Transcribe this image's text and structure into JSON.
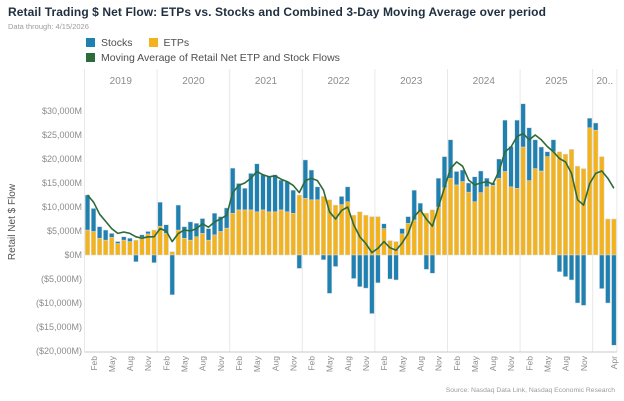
{
  "header": {
    "title": "Retail Trading $ Net Flow: ETPs vs. Stocks and Combined 3-Day Moving Average over period",
    "subtitle": "Data through: 4/15/2026"
  },
  "legend": {
    "items": [
      {
        "label": "Stocks",
        "color": "#1f80b2"
      },
      {
        "label": "ETPs",
        "color": "#f2b31e"
      },
      {
        "label": "Moving Average of Retail Net ETP and Stock Flows",
        "color": "#2c6b3a"
      }
    ]
  },
  "footer": {
    "source": "Source: Nasdaq Data Link, Nasdaq Economic Research"
  },
  "chart_data": {
    "type": "bar",
    "stacked": true,
    "title": "Retail Trading $ Net Flow: ETPs vs. Stocks and Combined 3-Day Moving Average over period",
    "ylabel": "Retail Net $ Flow",
    "unit": "$M",
    "x_start": "2019-01",
    "x_end": "2026-04",
    "ylim": [
      -21000,
      33500
    ],
    "grid": "year-separators-only",
    "legend_position": "top-left",
    "years": [
      {
        "label": "2019",
        "months": 12
      },
      {
        "label": "2020",
        "months": 12
      },
      {
        "label": "2021",
        "months": 12
      },
      {
        "label": "2022",
        "months": 12
      },
      {
        "label": "2023",
        "months": 12
      },
      {
        "label": "2024",
        "months": 12
      },
      {
        "label": "2025",
        "months": 12
      },
      {
        "label": "20..",
        "months": 4
      }
    ],
    "y_ticks": [
      {
        "v": 30000,
        "label": "$30,000M"
      },
      {
        "v": 25000,
        "label": "$25,000M"
      },
      {
        "v": 20000,
        "label": "$20,000M"
      },
      {
        "v": 15000,
        "label": "$15,000M"
      },
      {
        "v": 10000,
        "label": "$10,000M"
      },
      {
        "v": 5000,
        "label": "$5,000M"
      },
      {
        "v": 0,
        "label": "$0M"
      },
      {
        "v": -5000,
        "label": "($5,000M)"
      },
      {
        "v": -10000,
        "label": "($10,000M)"
      },
      {
        "v": -15000,
        "label": "($15,000M)"
      },
      {
        "v": -20000,
        "label": "($20,000M)"
      }
    ],
    "x_ticks": [
      {
        "i": 1,
        "label": "Feb"
      },
      {
        "i": 4,
        "label": "May"
      },
      {
        "i": 7,
        "label": "Aug"
      },
      {
        "i": 10,
        "label": "Nov"
      },
      {
        "i": 13,
        "label": "Feb"
      },
      {
        "i": 16,
        "label": "May"
      },
      {
        "i": 19,
        "label": "Aug"
      },
      {
        "i": 22,
        "label": "Nov"
      },
      {
        "i": 25,
        "label": "Feb"
      },
      {
        "i": 28,
        "label": "May"
      },
      {
        "i": 31,
        "label": "Aug"
      },
      {
        "i": 34,
        "label": "Nov"
      },
      {
        "i": 37,
        "label": "Feb"
      },
      {
        "i": 40,
        "label": "May"
      },
      {
        "i": 43,
        "label": "Aug"
      },
      {
        "i": 46,
        "label": "Nov"
      },
      {
        "i": 49,
        "label": "Feb"
      },
      {
        "i": 52,
        "label": "May"
      },
      {
        "i": 55,
        "label": "Aug"
      },
      {
        "i": 58,
        "label": "Nov"
      },
      {
        "i": 61,
        "label": "Feb"
      },
      {
        "i": 64,
        "label": "May"
      },
      {
        "i": 67,
        "label": "Aug"
      },
      {
        "i": 70,
        "label": "Nov"
      },
      {
        "i": 73,
        "label": "Feb"
      },
      {
        "i": 76,
        "label": "May"
      },
      {
        "i": 79,
        "label": "Aug"
      },
      {
        "i": 82,
        "label": "Nov"
      },
      {
        "i": 87,
        "label": "Apr"
      }
    ],
    "series": [
      {
        "name": "Stocks",
        "type": "bar",
        "color": "#1f80b2",
        "values": [
          7300,
          4800,
          2400,
          2100,
          800,
          400,
          700,
          700,
          -1400,
          500,
          500,
          -1600,
          5000,
          1800,
          -8300,
          5200,
          2400,
          3800,
          2800,
          3100,
          2400,
          4500,
          3100,
          4200,
          9400,
          5500,
          4500,
          7600,
          10000,
          7300,
          7300,
          7700,
          6200,
          6300,
          4800,
          -2800,
          8000,
          6200,
          2700,
          -1000,
          -8000,
          -2400,
          1700,
          3100,
          -4900,
          -6600,
          -6900,
          -12200,
          -5800,
          1000,
          -5000,
          -5200,
          1100,
          1400,
          6200,
          1800,
          -3000,
          -3800,
          6000,
          6500,
          8000,
          2800,
          2400,
          1900,
          5200,
          4500,
          1800,
          500,
          4000,
          10700,
          8400,
          14200,
          9000,
          11000,
          6000,
          5000,
          1000,
          2500,
          -3500,
          -4500,
          -5200,
          -10000,
          -10500,
          2000,
          1500,
          -7000,
          -10000,
          -18800
        ]
      },
      {
        "name": "ETPs",
        "type": "bar",
        "color": "#f2b31e",
        "values": [
          5200,
          4900,
          3500,
          3100,
          3700,
          2400,
          3100,
          2800,
          3100,
          3700,
          4400,
          5200,
          6000,
          4500,
          700,
          5200,
          3500,
          3100,
          3800,
          4500,
          3100,
          4200,
          4900,
          5600,
          8700,
          9400,
          9400,
          9400,
          9000,
          9400,
          9000,
          9000,
          9400,
          9000,
          8700,
          12500,
          11800,
          11500,
          11500,
          12200,
          11500,
          10400,
          10500,
          11100,
          8300,
          9000,
          8300,
          8000,
          8000,
          5500,
          3000,
          2800,
          4400,
          6600,
          7300,
          9000,
          8700,
          9400,
          10000,
          14000,
          16000,
          14600,
          15300,
          13100,
          11100,
          13000,
          14200,
          14500,
          16000,
          17400,
          14200,
          13900,
          22500,
          15500,
          18000,
          17500,
          20500,
          21500,
          21500,
          21000,
          22000,
          18500,
          18000,
          26500,
          26000,
          20500,
          7500,
          7500
        ]
      },
      {
        "name": "Moving Average of Retail Net ETP and Stock Flows",
        "type": "line",
        "color": "#2c6b3a",
        "values": [
          12500,
          11000,
          8500,
          7000,
          5500,
          4500,
          4800,
          4500,
          3800,
          3500,
          3800,
          3800,
          5500,
          5000,
          2800,
          4500,
          5200,
          5000,
          5500,
          6500,
          5800,
          6900,
          7500,
          8300,
          13000,
          14500,
          15000,
          16000,
          17400,
          16700,
          16300,
          16500,
          15800,
          15300,
          14500,
          13000,
          15500,
          16000,
          15500,
          13500,
          9000,
          7500,
          9300,
          10000,
          6300,
          3800,
          2400,
          500,
          1400,
          2800,
          1500,
          1000,
          2500,
          4500,
          8000,
          9400,
          7500,
          6000,
          10000,
          14000,
          18000,
          19400,
          18500,
          15600,
          14600,
          15000,
          15300,
          14800,
          17400,
          21500,
          22500,
          24700,
          25300,
          24000,
          25000,
          24000,
          22600,
          21500,
          20100,
          19400,
          17000,
          11500,
          10400,
          14900,
          17000,
          17500,
          16000,
          13900
        ]
      }
    ]
  }
}
